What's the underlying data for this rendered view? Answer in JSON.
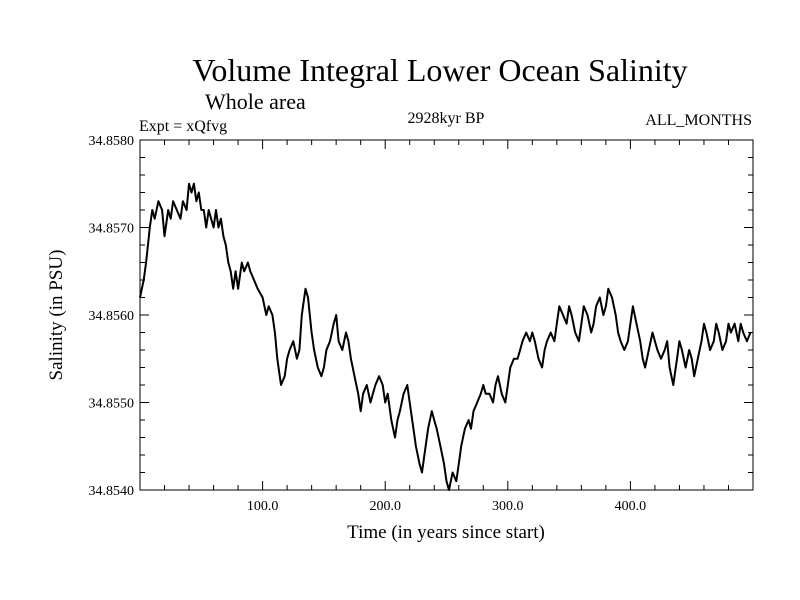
{
  "chart_data": {
    "type": "line",
    "title": "Volume Integral Lower Ocean Salinity",
    "subtitle": "Whole area",
    "left_label": "Expt = xQfvg",
    "center_label": "2928kyr BP",
    "right_label": "ALL_MONTHS",
    "xlabel": "Time (in years since start)",
    "ylabel": "Salinity (in PSU)",
    "xlim": [
      0,
      500
    ],
    "ylim": [
      34.854,
      34.858
    ],
    "x_ticks": [
      100,
      200,
      300,
      400
    ],
    "x_tick_labels": [
      "100.0",
      "200.0",
      "300.0",
      "400.0"
    ],
    "y_ticks": [
      34.854,
      34.855,
      34.856,
      34.857,
      34.858
    ],
    "y_tick_labels": [
      "34.8540",
      "34.8550",
      "34.8560",
      "34.8570",
      "34.8580"
    ],
    "grid": false,
    "line_color": "#000000",
    "series": [
      {
        "name": "Salinity",
        "x": [
          0,
          3,
          5,
          8,
          10,
          12,
          15,
          18,
          20,
          23,
          25,
          27,
          30,
          33,
          35,
          38,
          40,
          42,
          44,
          46,
          48,
          50,
          52,
          54,
          56,
          58,
          60,
          62,
          64,
          66,
          68,
          70,
          72,
          74,
          76,
          78,
          80,
          83,
          85,
          88,
          90,
          93,
          96,
          100,
          103,
          105,
          108,
          110,
          112,
          115,
          118,
          120,
          122,
          125,
          128,
          130,
          132,
          135,
          137,
          140,
          142,
          145,
          148,
          150,
          152,
          155,
          158,
          160,
          162,
          165,
          168,
          170,
          172,
          175,
          178,
          180,
          182,
          185,
          188,
          190,
          192,
          195,
          198,
          200,
          202,
          205,
          208,
          210,
          212,
          215,
          218,
          220,
          222,
          225,
          228,
          230,
          232,
          235,
          238,
          240,
          242,
          245,
          248,
          250,
          252,
          255,
          258,
          260,
          262,
          265,
          268,
          270,
          272,
          275,
          278,
          280,
          282,
          285,
          288,
          290,
          292,
          295,
          298,
          300,
          302,
          305,
          308,
          310,
          312,
          315,
          318,
          320,
          322,
          325,
          328,
          330,
          332,
          335,
          338,
          340,
          342,
          345,
          348,
          350,
          352,
          355,
          358,
          360,
          362,
          365,
          368,
          370,
          372,
          375,
          378,
          380,
          382,
          385,
          388,
          390,
          392,
          395,
          398,
          400,
          402,
          405,
          408,
          410,
          412,
          415,
          418,
          420,
          422,
          425,
          428,
          430,
          432,
          435,
          438,
          440,
          442,
          445,
          448,
          450,
          452,
          455,
          458,
          460,
          462,
          465,
          468,
          470,
          472,
          475,
          478,
          480,
          482,
          485,
          488,
          490,
          492,
          495,
          498
        ],
        "y": [
          34.8562,
          34.8564,
          34.8566,
          34.857,
          34.8572,
          34.8571,
          34.8573,
          34.8572,
          34.8569,
          34.8572,
          34.8571,
          34.8573,
          34.8572,
          34.8571,
          34.8573,
          34.8572,
          34.8575,
          34.8574,
          34.8575,
          34.8573,
          34.8574,
          34.8572,
          34.8572,
          34.857,
          34.8572,
          34.8571,
          34.857,
          34.8572,
          34.857,
          34.8571,
          34.8569,
          34.8568,
          34.8566,
          34.8565,
          34.8563,
          34.8565,
          34.8563,
          34.8566,
          34.8565,
          34.8566,
          34.8565,
          34.8564,
          34.8563,
          34.8562,
          34.856,
          34.8561,
          34.856,
          34.8558,
          34.8555,
          34.8552,
          34.8553,
          34.8555,
          34.8556,
          34.8557,
          34.8555,
          34.8556,
          34.856,
          34.8563,
          34.8562,
          34.8558,
          34.8556,
          34.8554,
          34.8553,
          34.8554,
          34.8556,
          34.8557,
          34.8559,
          34.856,
          34.8557,
          34.8556,
          34.8558,
          34.8557,
          34.8555,
          34.8553,
          34.8551,
          34.8549,
          34.8551,
          34.8552,
          34.855,
          34.8551,
          34.8552,
          34.8553,
          34.8552,
          34.855,
          34.8551,
          34.8548,
          34.8546,
          34.8548,
          34.8549,
          34.8551,
          34.8552,
          34.855,
          34.8548,
          34.8545,
          34.8543,
          34.8542,
          34.8544,
          34.8547,
          34.8549,
          34.8548,
          34.8547,
          34.8545,
          34.8543,
          34.8541,
          34.854,
          34.8542,
          34.8541,
          34.8543,
          34.8545,
          34.8547,
          34.8548,
          34.8547,
          34.8549,
          34.855,
          34.8551,
          34.8552,
          34.8551,
          34.8551,
          34.855,
          34.8552,
          34.8553,
          34.8551,
          34.855,
          34.8552,
          34.8554,
          34.8555,
          34.8555,
          34.8556,
          34.8557,
          34.8558,
          34.8557,
          34.8558,
          34.8557,
          34.8555,
          34.8554,
          34.8556,
          34.8557,
          34.8558,
          34.8557,
          34.8559,
          34.8561,
          34.856,
          34.8559,
          34.8561,
          34.856,
          34.8558,
          34.8557,
          34.8559,
          34.8561,
          34.856,
          34.8558,
          34.8559,
          34.8561,
          34.8562,
          34.856,
          34.8561,
          34.8563,
          34.8562,
          34.856,
          34.8558,
          34.8557,
          34.8556,
          34.8557,
          34.8559,
          34.8561,
          34.8559,
          34.8557,
          34.8555,
          34.8554,
          34.8556,
          34.8558,
          34.8557,
          34.8556,
          34.8555,
          34.8556,
          34.8557,
          34.8554,
          34.8552,
          34.8555,
          34.8557,
          34.8556,
          34.8554,
          34.8556,
          34.8555,
          34.8553,
          34.8555,
          34.8557,
          34.8559,
          34.8558,
          34.8556,
          34.8557,
          34.8559,
          34.8558,
          34.8556,
          34.8557,
          34.8559,
          34.8558,
          34.8559,
          34.8557,
          34.8559,
          34.8558,
          34.8557,
          34.8558
        ]
      }
    ]
  }
}
